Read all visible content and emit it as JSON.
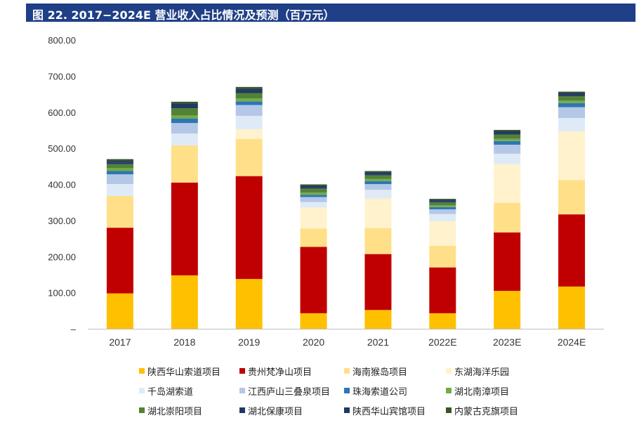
{
  "title": "图 22. 2017−2024E 营业收入占比情况及预测（百万元）",
  "chart_data": {
    "type": "bar",
    "stacked": true,
    "categories": [
      "2017",
      "2018",
      "2019",
      "2020",
      "2021",
      "2022E",
      "2023E",
      "2024E"
    ],
    "y_ticks": [
      "–",
      "100.00",
      "200.00",
      "300.00",
      "400.00",
      "500.00",
      "600.00",
      "700.00",
      "800.00"
    ],
    "ylim": [
      0,
      800
    ],
    "grid": false,
    "legend_position": "bottom",
    "series": [
      {
        "name": "陕西华山索道项目",
        "color": "#ffc000",
        "values": [
          98,
          148,
          138,
          43,
          52,
          43,
          105,
          117
        ]
      },
      {
        "name": "贵州梵净山项目",
        "color": "#c00000",
        "values": [
          182,
          257,
          285,
          184,
          155,
          127,
          162,
          200
        ]
      },
      {
        "name": "海南猴岛项目",
        "color": "#ffe089",
        "values": [
          88,
          103,
          103,
          51,
          72,
          60,
          82,
          95
        ]
      },
      {
        "name": "东湖海洋乐园",
        "color": "#fff2cc",
        "values": [
          0,
          0,
          27,
          58,
          82,
          68,
          107,
          135
        ]
      },
      {
        "name": "千岛湖索道",
        "color": "#deebf7",
        "values": [
          33,
          33,
          37,
          15,
          24,
          20,
          29,
          37
        ]
      },
      {
        "name": "江西庐山三叠泉项目",
        "color": "#b4c7e7",
        "values": [
          27,
          29,
          30,
          14,
          16,
          13,
          25,
          30
        ]
      },
      {
        "name": "珠海索道公司",
        "color": "#2e75b6",
        "values": [
          9,
          12,
          10,
          6,
          8,
          6,
          10,
          11
        ]
      },
      {
        "name": "湖北南漳项目",
        "color": "#70ad47",
        "values": [
          8,
          9,
          8,
          6,
          6,
          5,
          6,
          7
        ]
      },
      {
        "name": "湖北崇阳项目",
        "color": "#548235",
        "values": [
          11,
          20,
          15,
          11,
          10,
          8,
          12,
          12
        ]
      },
      {
        "name": "湖北保康项目",
        "color": "#203864",
        "values": [
          4,
          5,
          5,
          3,
          3,
          3,
          4,
          4
        ]
      },
      {
        "name": "陕西华山宾馆项目",
        "color": "#1f3864",
        "values": [
          5,
          8,
          7,
          5,
          5,
          4,
          5,
          5
        ]
      },
      {
        "name": "内蒙古克旗项目",
        "color": "#375623",
        "values": [
          5,
          5,
          5,
          4,
          4,
          3,
          4,
          4
        ]
      }
    ]
  }
}
